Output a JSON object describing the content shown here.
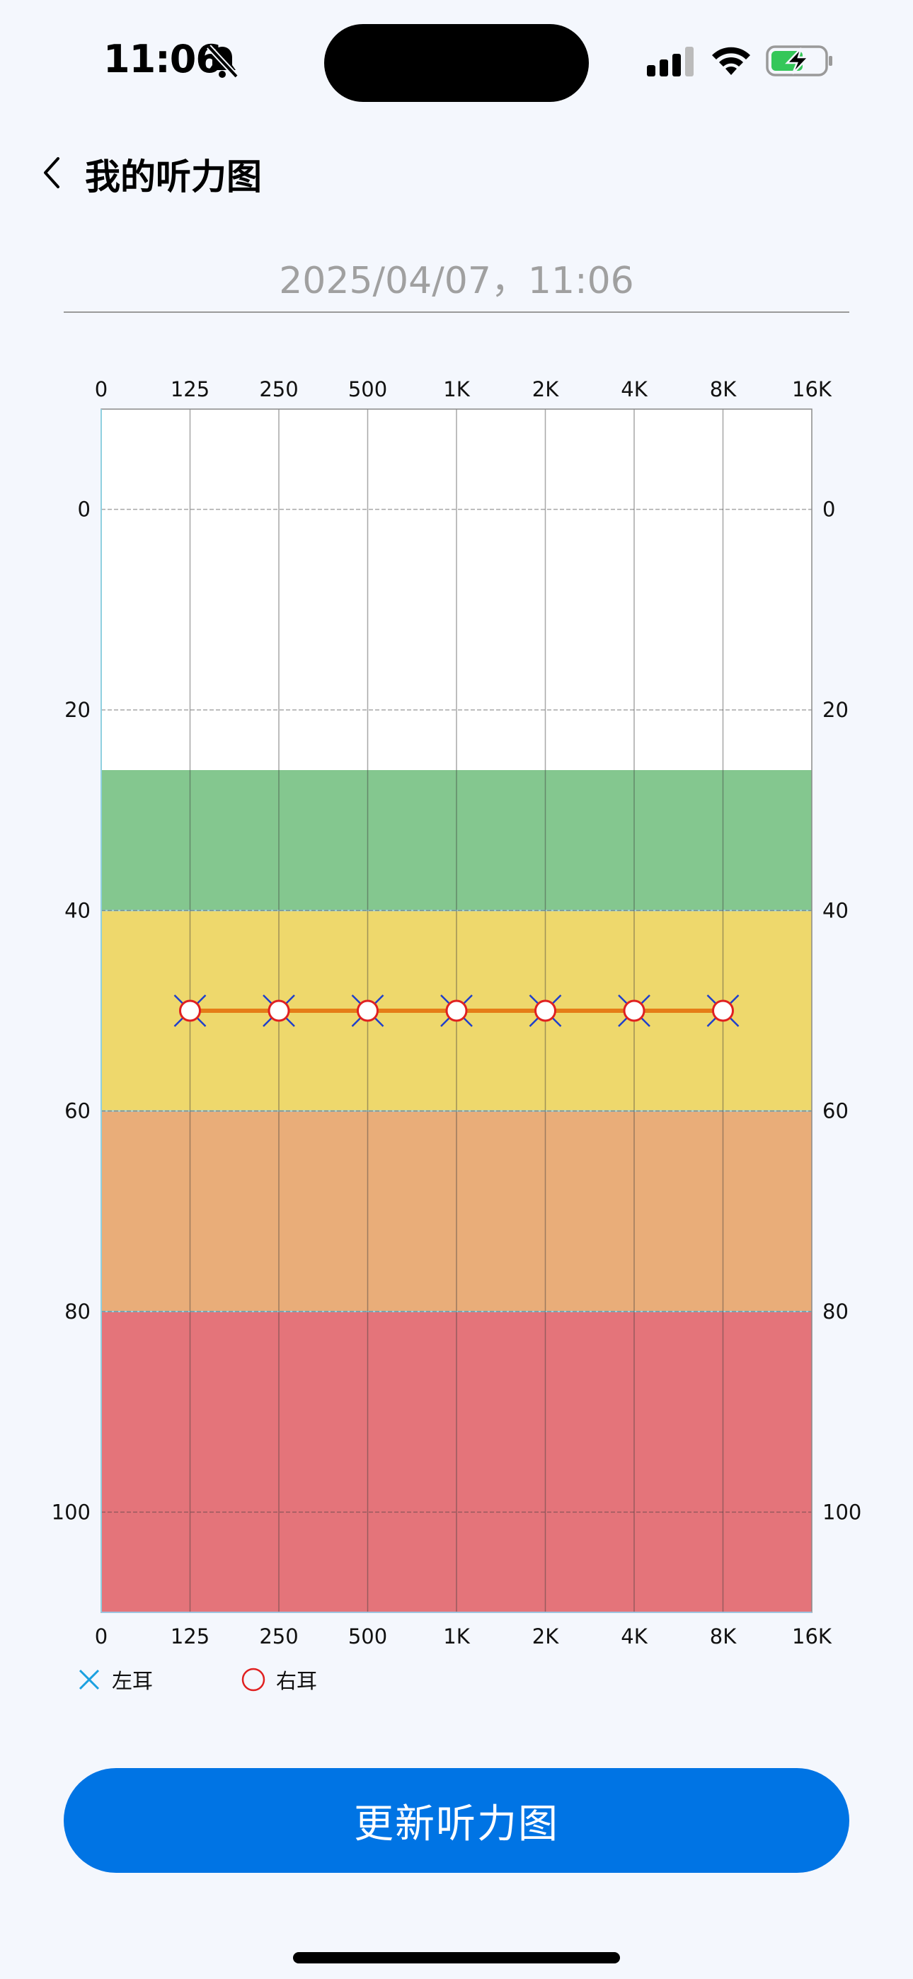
{
  "status_bar": {
    "time": "11:06",
    "icons": [
      "bell-slash-icon",
      "cellular-signal-icon",
      "wifi-icon",
      "battery-charging-icon"
    ]
  },
  "nav": {
    "back_icon": "chevron-left-icon",
    "title": "我的听力图"
  },
  "date": "2025/04/07，11:06",
  "chart_data": {
    "type": "line",
    "title": "",
    "xlabel": "",
    "ylabel": "",
    "x_top_ticks": [
      "0",
      "125",
      "250",
      "500",
      "1K",
      "2K",
      "4K",
      "8K",
      "16K"
    ],
    "x_bottom_ticks": [
      "0",
      "125",
      "250",
      "500",
      "1K",
      "2K",
      "4K",
      "8K",
      "16K"
    ],
    "y_left_ticks": [
      "0",
      "20",
      "40",
      "60",
      "80",
      "100"
    ],
    "y_right_ticks": [
      "0",
      "20",
      "40",
      "60",
      "80",
      "100"
    ],
    "ylim": [
      -10,
      110
    ],
    "y_inverted": true,
    "grid": true,
    "bands": [
      {
        "from": 26,
        "to": 40,
        "color": "#84C78F"
      },
      {
        "from": 40,
        "to": 60,
        "color": "#EED86C"
      },
      {
        "from": 60,
        "to": 80,
        "color": "#E9AD79"
      },
      {
        "from": 80,
        "to": 110,
        "color": "#E4747A"
      }
    ],
    "series": [
      {
        "name": "左耳",
        "marker": "x",
        "color": "#1E3FCC",
        "x": [
          "125",
          "250",
          "500",
          "1K",
          "2K",
          "4K",
          "8K"
        ],
        "values": [
          50,
          50,
          50,
          50,
          50,
          50,
          50
        ]
      },
      {
        "name": "右耳",
        "marker": "circle",
        "color": "#E02020",
        "x": [
          "125",
          "250",
          "500",
          "1K",
          "2K",
          "4K",
          "8K"
        ],
        "values": [
          50,
          50,
          50,
          50,
          50,
          50,
          50
        ]
      }
    ],
    "connecting_line_color": "#E57D17",
    "legend_position": "bottom-left"
  },
  "legend": {
    "left_label": "左耳",
    "right_label": "右耳",
    "left_color": "#1AA0E0",
    "right_color": "#E02020"
  },
  "button": {
    "label": "更新听力图",
    "color": "#0074E4"
  }
}
